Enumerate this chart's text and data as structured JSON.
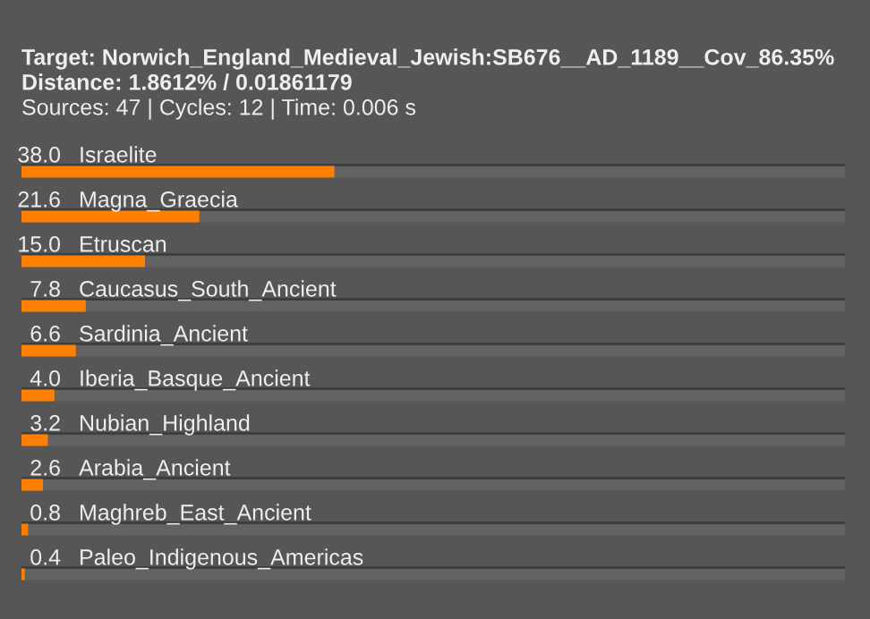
{
  "chart_data": {
    "type": "bar",
    "orientation": "horizontal",
    "title": "Target: Norwich_England_Medieval_Jewish:SB676__AD_1189__Cov_86.35%",
    "subtitle": "Distance: 1.8612% / 0.01861179",
    "annotations": [
      "Sources: 47 | Cycles: 12 | Time: 0.006 s"
    ],
    "categories": [
      "Israelite",
      "Magna_Graecia",
      "Etruscan",
      "Caucasus_South_Ancient",
      "Sardinia_Ancient",
      "Iberia_Basque_Ancient",
      "Nubian_Highland",
      "Arabia_Ancient",
      "Maghreb_East_Ancient",
      "Paleo_Indigenous_Americas"
    ],
    "values": [
      38.0,
      21.6,
      15.0,
      7.8,
      6.6,
      4.0,
      3.2,
      2.6,
      0.8,
      0.4
    ],
    "value_labels": [
      "38.0",
      "21.6",
      "15.0",
      "7.8",
      "6.6",
      "4.0",
      "3.2",
      "2.6",
      "0.8",
      "0.4"
    ],
    "color": "#ff8000",
    "xlim": [
      0,
      100
    ]
  }
}
